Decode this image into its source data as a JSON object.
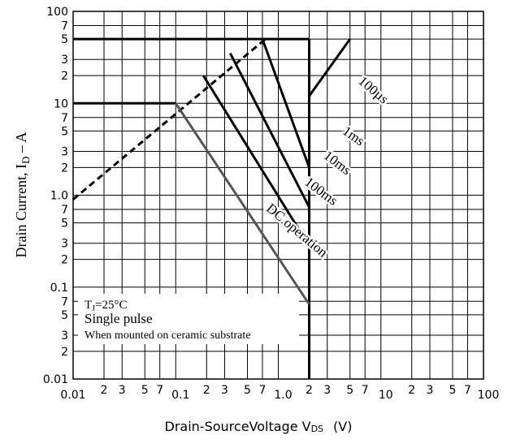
{
  "chart_data": {
    "type": "line",
    "log_x": true,
    "log_y": true,
    "grid": true,
    "x_label": {
      "text": "Drain-SourceVoltage   V",
      "sub": "DS",
      "suffix": "(V)"
    },
    "y_label": {
      "text": "Drain Current, I",
      "sub": "D",
      "suffix": " – A"
    },
    "note": {
      "t": "T",
      "t_sub": "J",
      "t_rest": "=25°C",
      "line2": "Single pulse",
      "line3": "When mounted on ceramic substrate"
    },
    "xlim": [
      0.01,
      100
    ],
    "ylim": [
      0.01,
      100
    ],
    "xticks": [
      0.01,
      {
        "value": 0.02,
        "label": "2"
      },
      {
        "value": 0.03,
        "label": "3"
      },
      {
        "value": 0.05,
        "label": "5"
      },
      {
        "value": 0.07,
        "label": "7"
      },
      0.1,
      {
        "value": 0.2,
        "label": "2"
      },
      {
        "value": 0.3,
        "label": "3"
      },
      {
        "value": 0.5,
        "label": "5"
      },
      {
        "value": 0.7,
        "label": "7"
      },
      {
        "value": 1,
        "label": "1.0"
      },
      {
        "value": 2,
        "label": "2"
      },
      {
        "value": 3,
        "label": "3"
      },
      {
        "value": 5,
        "label": "5"
      },
      {
        "value": 7,
        "label": "7"
      },
      10,
      {
        "value": 20,
        "label": "2"
      },
      {
        "value": 30,
        "label": "3"
      },
      {
        "value": 50,
        "label": "5"
      },
      {
        "value": 70,
        "label": "7"
      },
      100
    ],
    "yticks": [
      0.01,
      {
        "value": 0.02,
        "label": "2"
      },
      {
        "value": 0.03,
        "label": "3"
      },
      {
        "value": 0.05,
        "label": "5"
      },
      {
        "value": 0.07,
        "label": "7"
      },
      0.1,
      {
        "value": 0.2,
        "label": "2"
      },
      {
        "value": 0.3,
        "label": "3"
      },
      {
        "value": 0.5,
        "label": "5"
      },
      {
        "value": 0.7,
        "label": "7"
      },
      {
        "value": 1,
        "label": "1.0"
      },
      {
        "value": 2,
        "label": "2"
      },
      {
        "value": 3,
        "label": "3"
      },
      {
        "value": 5,
        "label": "5"
      },
      {
        "value": 7,
        "label": "7"
      },
      10,
      {
        "value": 20,
        "label": "2"
      },
      {
        "value": 30,
        "label": "3"
      },
      {
        "value": 50,
        "label": "5"
      },
      {
        "value": 70,
        "label": "7"
      },
      100
    ],
    "series": [
      {
        "x": [
          0.01,
          2
        ],
        "values": [
          50,
          50
        ],
        "color": "#000000"
      },
      {
        "x": [
          2,
          2
        ],
        "values": [
          50,
          0.01
        ],
        "color": "#000000"
      },
      {
        "x": [
          0.01,
          0.1
        ],
        "values": [
          10,
          10
        ],
        "color": "#000000"
      },
      {
        "x": [
          0.01,
          0.75
        ],
        "values": [
          0.9,
          50
        ],
        "color": "#000000",
        "style": "dashed"
      },
      {
        "name": "100µs",
        "x": [
          5,
          2
        ],
        "values": [
          50,
          12
        ],
        "color": "#000000"
      },
      {
        "name": "1ms",
        "x": [
          0.7,
          2
        ],
        "values": [
          50,
          2
        ],
        "color": "#000000"
      },
      {
        "name": "10ms",
        "x": [
          0.34,
          2
        ],
        "values": [
          35,
          0.74
        ],
        "color": "#000000"
      },
      {
        "name": "100ms",
        "x": [
          0.186,
          2
        ],
        "values": [
          20,
          0.28
        ],
        "color": "#000000"
      },
      {
        "name": "DC operation",
        "x": [
          0.1,
          2
        ],
        "values": [
          10,
          0.065
        ],
        "color": "#555555"
      }
    ]
  }
}
